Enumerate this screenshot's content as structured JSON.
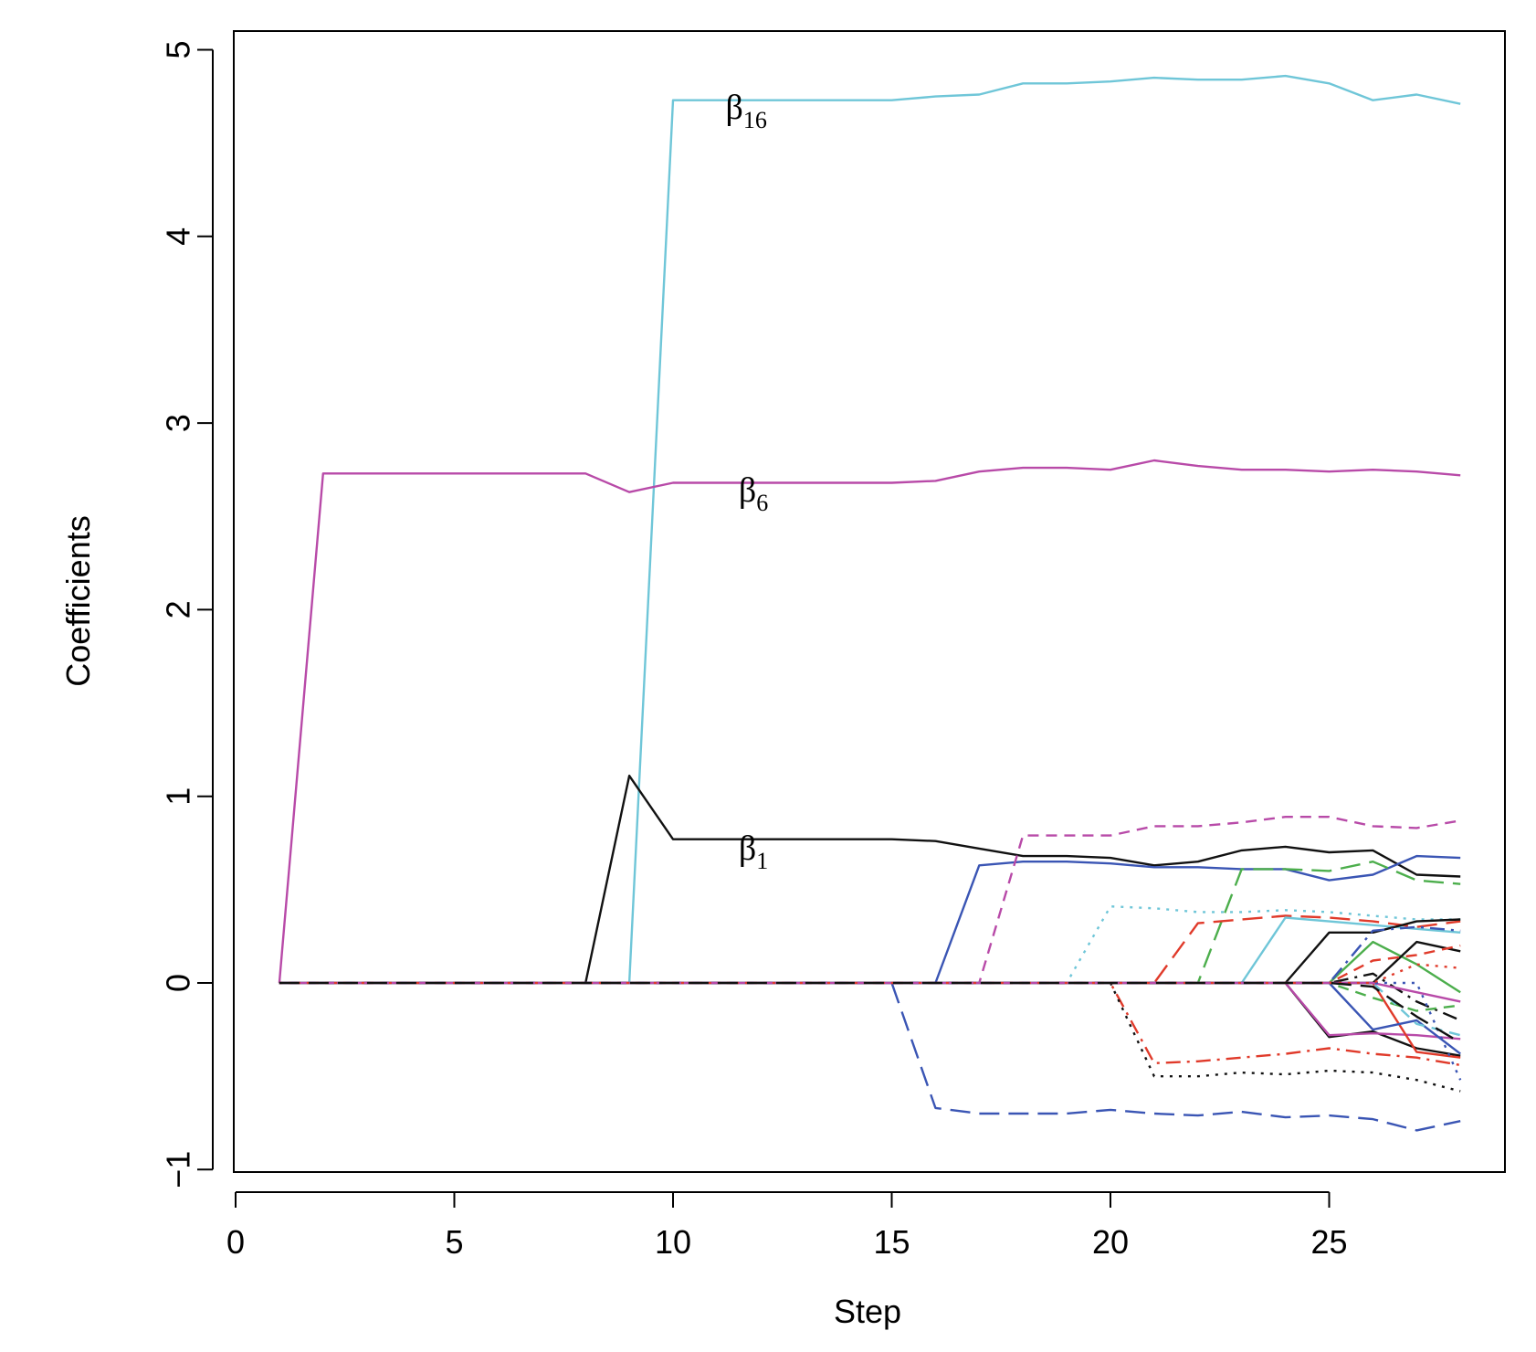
{
  "chart_data": {
    "type": "line",
    "title": "",
    "xlabel": "Step",
    "ylabel": "Coefficients",
    "xlim": [
      0,
      29
    ],
    "ylim": [
      -1,
      5
    ],
    "xticks": [
      "0",
      "5",
      "10",
      "15",
      "20",
      "25"
    ],
    "yticks": [
      "-1",
      "0",
      "1",
      "2",
      "3",
      "4",
      "5"
    ],
    "grid": false,
    "annotations": [
      {
        "symbol": "β",
        "sub": "16",
        "x": 11.2,
        "y": 4.63
      },
      {
        "symbol": "β",
        "sub": "6",
        "x": 11.5,
        "y": 2.58
      },
      {
        "symbol": "β",
        "sub": "1",
        "x": 11.5,
        "y": 0.66
      }
    ],
    "series": [
      {
        "name": "beta16",
        "color": "#6fc6d8",
        "dash": "solid",
        "x": [
          1,
          2,
          3,
          4,
          5,
          6,
          7,
          8,
          9,
          10,
          11,
          12,
          13,
          14,
          15,
          16,
          17,
          18,
          19,
          20,
          21,
          22,
          23,
          24,
          25,
          26,
          27,
          28
        ],
        "y": [
          0,
          0,
          0,
          0,
          0,
          0,
          0,
          0,
          0,
          4.73,
          4.73,
          4.73,
          4.73,
          4.73,
          4.73,
          4.75,
          4.76,
          4.82,
          4.82,
          4.83,
          4.85,
          4.84,
          4.84,
          4.86,
          4.82,
          4.73,
          4.76,
          4.71
        ]
      },
      {
        "name": "beta6",
        "color": "#b84aa8",
        "dash": "solid",
        "x": [
          1,
          2,
          3,
          4,
          5,
          6,
          7,
          8,
          9,
          10,
          11,
          12,
          13,
          14,
          15,
          16,
          17,
          18,
          19,
          20,
          21,
          22,
          23,
          24,
          25,
          26,
          27,
          28
        ],
        "y": [
          0,
          2.73,
          2.73,
          2.73,
          2.73,
          2.73,
          2.73,
          2.73,
          2.63,
          2.68,
          2.68,
          2.68,
          2.68,
          2.68,
          2.68,
          2.69,
          2.74,
          2.76,
          2.76,
          2.75,
          2.8,
          2.77,
          2.75,
          2.75,
          2.74,
          2.75,
          2.74,
          2.72
        ]
      },
      {
        "name": "beta1",
        "color": "#111111",
        "dash": "solid",
        "x": [
          1,
          2,
          3,
          4,
          5,
          6,
          7,
          8,
          9,
          10,
          11,
          12,
          13,
          14,
          15,
          16,
          17,
          18,
          19,
          20,
          21,
          22,
          23,
          24,
          25,
          26,
          27,
          28
        ],
        "y": [
          0,
          0,
          0,
          0,
          0,
          0,
          0,
          0,
          1.11,
          0.77,
          0.77,
          0.77,
          0.77,
          0.77,
          0.77,
          0.76,
          0.72,
          0.68,
          0.68,
          0.67,
          0.63,
          0.65,
          0.71,
          0.73,
          0.7,
          0.71,
          0.58,
          0.57
        ]
      },
      {
        "name": "blue-solid",
        "color": "#3a55b4",
        "dash": "solid",
        "x": [
          1,
          16,
          17,
          18,
          19,
          20,
          21,
          22,
          23,
          24,
          25,
          26,
          27,
          28
        ],
        "y": [
          0,
          0,
          0.63,
          0.65,
          0.65,
          0.64,
          0.62,
          0.62,
          0.61,
          0.61,
          0.55,
          0.58,
          0.68,
          0.67
        ]
      },
      {
        "name": "magenta-dashed",
        "color": "#b84aa8",
        "dash": "short",
        "x": [
          1,
          17,
          18,
          19,
          20,
          21,
          22,
          23,
          24,
          25,
          26,
          27,
          28
        ],
        "y": [
          0,
          0,
          0.79,
          0.79,
          0.79,
          0.84,
          0.84,
          0.86,
          0.89,
          0.89,
          0.84,
          0.83,
          0.87
        ]
      },
      {
        "name": "green-dashed",
        "color": "#4cae4c",
        "dash": "long",
        "x": [
          1,
          22,
          23,
          24,
          25,
          26,
          27,
          28
        ],
        "y": [
          0,
          0,
          0.61,
          0.61,
          0.6,
          0.65,
          0.55,
          0.53
        ]
      },
      {
        "name": "cyan-dotted",
        "color": "#6fc6d8",
        "dash": "dot",
        "x": [
          1,
          19,
          20,
          21,
          22,
          23,
          24,
          25,
          26,
          27,
          28
        ],
        "y": [
          0,
          0,
          0.41,
          0.4,
          0.38,
          0.38,
          0.39,
          0.38,
          0.36,
          0.34,
          0.34
        ]
      },
      {
        "name": "red-longdash",
        "color": "#e03a2a",
        "dash": "long",
        "x": [
          1,
          21,
          22,
          23,
          24,
          25,
          26,
          27,
          28
        ],
        "y": [
          0,
          0,
          0.32,
          0.34,
          0.36,
          0.35,
          0.33,
          0.3,
          0.33
        ]
      },
      {
        "name": "cyan-solid",
        "color": "#6fc6d8",
        "dash": "solid",
        "x": [
          1,
          23,
          24,
          25,
          26,
          27,
          28
        ],
        "y": [
          0,
          0,
          0.35,
          0.33,
          0.31,
          0.29,
          0.27
        ]
      },
      {
        "name": "blue-longdash",
        "color": "#3a55b4",
        "dash": "long",
        "x": [
          1,
          15,
          16,
          17,
          18,
          19,
          20,
          21,
          22,
          23,
          24,
          25,
          26,
          27,
          28
        ],
        "y": [
          0,
          0,
          -0.67,
          -0.7,
          -0.7,
          -0.7,
          -0.68,
          -0.7,
          -0.71,
          -0.69,
          -0.72,
          -0.71,
          -0.73,
          -0.79,
          -0.74
        ]
      },
      {
        "name": "red-dotdash",
        "color": "#e03a2a",
        "dash": "dotdash",
        "x": [
          1,
          20,
          21,
          22,
          23,
          24,
          25,
          26,
          27,
          28
        ],
        "y": [
          0,
          0,
          -0.43,
          -0.42,
          -0.4,
          -0.38,
          -0.35,
          -0.38,
          -0.4,
          -0.44
        ]
      },
      {
        "name": "black-dotted",
        "color": "#111111",
        "dash": "dot",
        "x": [
          1,
          20,
          21,
          22,
          23,
          24,
          25,
          26,
          27,
          28
        ],
        "y": [
          0,
          0,
          -0.5,
          -0.5,
          -0.48,
          -0.49,
          -0.47,
          -0.48,
          -0.52,
          -0.58
        ]
      },
      {
        "name": "black-solid-2",
        "color": "#111111",
        "dash": "solid",
        "x": [
          1,
          24,
          25,
          26,
          27,
          28
        ],
        "y": [
          0,
          0,
          0.27,
          0.27,
          0.33,
          0.34
        ]
      },
      {
        "name": "black-solid-3",
        "color": "#111111",
        "dash": "solid",
        "x": [
          1,
          24,
          25,
          26,
          27,
          28
        ],
        "y": [
          0,
          0,
          -0.29,
          -0.26,
          -0.35,
          -0.39
        ]
      },
      {
        "name": "green-solid",
        "color": "#4cae4c",
        "dash": "solid",
        "x": [
          1,
          25,
          26,
          27,
          28
        ],
        "y": [
          0,
          0,
          0.22,
          0.1,
          -0.05
        ]
      },
      {
        "name": "magenta-solid",
        "color": "#b84aa8",
        "dash": "solid",
        "x": [
          1,
          24,
          25,
          26,
          27,
          28
        ],
        "y": [
          0,
          0,
          -0.28,
          -0.27,
          -0.28,
          -0.3
        ]
      },
      {
        "name": "red-solid",
        "color": "#e03a2a",
        "dash": "solid",
        "x": [
          1,
          26,
          27,
          28
        ],
        "y": [
          0,
          0,
          -0.37,
          -0.4
        ]
      },
      {
        "name": "blue-solid-2",
        "color": "#3a55b4",
        "dash": "solid",
        "x": [
          1,
          25,
          26,
          27,
          28
        ],
        "y": [
          0,
          0,
          -0.25,
          -0.2,
          -0.38
        ]
      },
      {
        "name": "black-solid-4",
        "color": "#111111",
        "dash": "solid",
        "x": [
          1,
          26,
          27,
          28
        ],
        "y": [
          0,
          0,
          0.22,
          0.17
        ]
      },
      {
        "name": "black-dotdash",
        "color": "#111111",
        "dash": "dotdash",
        "x": [
          1,
          25,
          26,
          27,
          28
        ],
        "y": [
          0,
          0,
          0.05,
          -0.1,
          -0.2
        ]
      },
      {
        "name": "green-dashed-2",
        "color": "#4cae4c",
        "dash": "short",
        "x": [
          1,
          25,
          26,
          27,
          28
        ],
        "y": [
          0,
          0,
          -0.08,
          -0.15,
          -0.12
        ]
      },
      {
        "name": "red-dashed-2",
        "color": "#e03a2a",
        "dash": "short",
        "x": [
          1,
          25,
          26,
          27,
          28
        ],
        "y": [
          0,
          0,
          0.12,
          0.15,
          0.2
        ]
      },
      {
        "name": "blue-dotdash",
        "color": "#3a55b4",
        "dash": "dotdash",
        "x": [
          1,
          25,
          26,
          27,
          28
        ],
        "y": [
          0,
          0,
          0.28,
          0.3,
          0.28
        ]
      },
      {
        "name": "cyan-dashed-2",
        "color": "#6fc6d8",
        "dash": "short",
        "x": [
          1,
          26,
          27,
          28
        ],
        "y": [
          0,
          0,
          -0.22,
          -0.28
        ]
      },
      {
        "name": "magenta-solid-2",
        "color": "#b84aa8",
        "dash": "solid",
        "x": [
          1,
          26,
          27,
          28
        ],
        "y": [
          0,
          0,
          -0.05,
          -0.1
        ]
      },
      {
        "name": "blue-dotted",
        "color": "#3a55b4",
        "dash": "dot",
        "x": [
          1,
          27,
          28
        ],
        "y": [
          0,
          0,
          -0.52
        ]
      },
      {
        "name": "red-dotted",
        "color": "#e03a2a",
        "dash": "dot",
        "x": [
          1,
          26,
          27,
          28
        ],
        "y": [
          0,
          0,
          0.1,
          0.08
        ]
      },
      {
        "name": "black-dashed",
        "color": "#111111",
        "dash": "long",
        "x": [
          1,
          25,
          26,
          27,
          28
        ],
        "y": [
          0,
          0,
          -0.02,
          -0.18,
          -0.32
        ]
      }
    ]
  }
}
